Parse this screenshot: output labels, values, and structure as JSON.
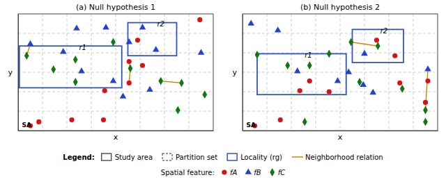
{
  "chart_data": [
    {
      "type": "scatter",
      "title": "(a)  Null hypothesis 1",
      "xlabel": "x",
      "ylabel": "y",
      "xlim": [
        0,
        8
      ],
      "ylim": [
        0,
        6
      ],
      "xticks": [
        1,
        2,
        3,
        4,
        5,
        6,
        7
      ],
      "yticks": [
        1,
        2,
        3,
        4,
        5
      ],
      "grid": true,
      "tick_labels": false,
      "series": [
        {
          "name": "fA",
          "color": "#dd1111",
          "marker": "circle",
          "x": [
            0.5,
            0.85,
            2.2,
            3.55,
            4.55,
            5.1,
            4.55,
            7.45,
            4.9,
            3.5
          ],
          "values": [
            0.25,
            0.45,
            0.55,
            2.05,
            3.55,
            3.35,
            2.45,
            5.7,
            4.65,
            0.55
          ]
        },
        {
          "name": "fB",
          "color": "#2244cc",
          "marker": "triangle",
          "x": [
            0.5,
            1.85,
            2.4,
            3.6,
            4.55,
            5.1,
            5.65,
            7.5,
            2.6,
            3.9,
            4.3,
            5.4
          ],
          "values": [
            4.45,
            4.05,
            5.25,
            5.3,
            4.55,
            5.3,
            4.15,
            4.0,
            3.05,
            2.55,
            1.75,
            2.1
          ]
        },
        {
          "name": "fC",
          "color": "#117711",
          "marker": "diamond",
          "x": [
            0.35,
            1.45,
            2.35,
            2.35,
            3.9,
            4.6,
            5.85,
            6.7,
            7.65,
            6.55
          ],
          "values": [
            3.85,
            3.15,
            2.5,
            3.65,
            4.55,
            3.2,
            2.55,
            2.45,
            1.85,
            1.05
          ]
        }
      ],
      "localities": {
        "color": "#3355bb",
        "rects": [
          [
            0.05,
            2.2,
            4.2,
            2.15
          ],
          [
            4.5,
            3.85,
            2.0,
            1.7
          ]
        ]
      },
      "neighborhood_lines": {
        "color": "#cc8800",
        "segments": [
          [
            [
              0.5,
              4.45
            ],
            [
              0.35,
              3.85
            ]
          ],
          [
            [
              4.55,
              3.55
            ],
            [
              4.6,
              3.2
            ]
          ],
          [
            [
              4.55,
              2.45
            ],
            [
              4.6,
              3.2
            ]
          ],
          [
            [
              5.85,
              2.55
            ],
            [
              6.7,
              2.45
            ]
          ]
        ]
      },
      "annotations": [
        {
          "text": "r1",
          "x": 2.5,
          "y": 4.15
        },
        {
          "text": "r2",
          "x": 5.7,
          "y": 5.35
        }
      ],
      "corner_label": "SA"
    },
    {
      "type": "scatter",
      "title": "(b)  Null hypothesis 2",
      "xlabel": "x",
      "ylabel": "y",
      "xlim": [
        0,
        8
      ],
      "ylim": [
        0,
        6
      ],
      "xticks": [
        1,
        2,
        3,
        4,
        5,
        6,
        7
      ],
      "yticks": [
        1,
        2,
        3,
        4,
        5
      ],
      "grid": true,
      "tick_labels": false,
      "series": [
        {
          "name": "fA",
          "color": "#dd1111",
          "marker": "circle",
          "x": [
            0.5,
            1.55,
            2.35,
            2.75,
            3.55,
            5.5,
            6.25,
            7.5,
            7.6,
            6.45
          ],
          "values": [
            0.25,
            0.55,
            2.05,
            2.55,
            2.0,
            4.65,
            3.85,
            1.45,
            2.55,
            2.45
          ]
        },
        {
          "name": "fB",
          "color": "#2244cc",
          "marker": "triangle",
          "x": [
            0.35,
            1.45,
            2.25,
            3.9,
            4.35,
            4.95,
            5.0,
            5.35,
            7.6
          ],
          "values": [
            5.5,
            5.15,
            3.05,
            2.55,
            3.0,
            2.35,
            3.95,
            1.95,
            3.15
          ]
        },
        {
          "name": "fC",
          "color": "#117711",
          "marker": "diamond",
          "x": [
            0.6,
            1.85,
            2.75,
            3.55,
            4.45,
            4.8,
            5.55,
            6.55,
            7.5,
            7.5,
            2.55
          ],
          "values": [
            3.9,
            3.35,
            3.35,
            3.95,
            4.55,
            2.5,
            4.35,
            2.15,
            0.45,
            1.05,
            0.45
          ]
        }
      ],
      "localities": {
        "color": "#3355bb",
        "rects": [
          [
            0.6,
            1.85,
            3.65,
            2.1
          ],
          [
            4.5,
            3.5,
            2.1,
            1.7
          ]
        ]
      },
      "neighborhood_lines": {
        "color": "#cc8800",
        "segments": [
          [
            [
              4.45,
              4.55
            ],
            [
              5.55,
              4.35
            ]
          ],
          [
            [
              7.5,
              1.05
            ],
            [
              7.6,
              3.15
            ]
          ]
        ]
      },
      "annotations": [
        {
          "text": "r1",
          "x": 2.55,
          "y": 3.75
        },
        {
          "text": "r2",
          "x": 5.65,
          "y": 5.0
        }
      ],
      "corner_label": "SA"
    }
  ],
  "figure_legend": {
    "title": "Legend:",
    "entries": [
      {
        "name": "Study area",
        "marker": "square",
        "line_style": "solid",
        "color": "#555555"
      },
      {
        "name": "Partition set",
        "marker": "square",
        "line_style": "dashed",
        "color": "#777777"
      },
      {
        "name": "Locality (rg)",
        "marker": "square",
        "line_style": "solid",
        "color": "#3355bb"
      },
      {
        "name": "Neighborhood relation",
        "marker": "none",
        "line_style": "solid",
        "color": "#cc8800"
      }
    ],
    "feature_title": "Spatial feature:"
  }
}
